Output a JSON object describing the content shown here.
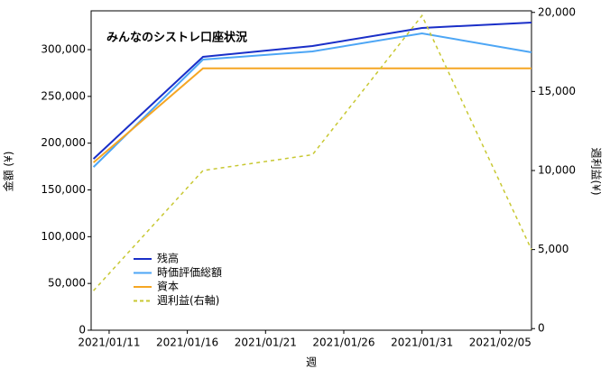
{
  "chart_data": {
    "type": "line",
    "title": "みんなのシストレ口座状況",
    "x_label": "週",
    "y_label": "金額 (¥)",
    "y2_label": "週利益(¥)",
    "x": [
      "2021/01/10",
      "2021/01/17",
      "2021/01/24",
      "2021/01/31",
      "2021/02/07"
    ],
    "xlim": [
      "2021/01/10",
      "2021/02/07"
    ],
    "xticks": [
      "2021/01/11",
      "2021/01/16",
      "2021/01/21",
      "2021/01/26",
      "2021/01/31",
      "2021/02/05"
    ],
    "ylim": [
      0,
      341500
    ],
    "yticks": [
      0,
      {
        "value": 50000,
        "label": "50,000"
      },
      {
        "value": 100000,
        "label": "100,000"
      },
      {
        "value": 150000,
        "label": "150,000"
      },
      {
        "value": 200000,
        "label": "200,000"
      },
      {
        "value": 250000,
        "label": "250,000"
      },
      {
        "value": 300000,
        "label": "300,000"
      }
    ],
    "y2lim": [
      -100,
      20100
    ],
    "y2ticks": [
      0,
      {
        "value": 5000,
        "label": "5,000"
      },
      {
        "value": 10000,
        "label": "10,000"
      },
      {
        "value": 15000,
        "label": "15,000"
      },
      {
        "value": 20000,
        "label": "20,000"
      }
    ],
    "legend": "lower left",
    "series": [
      {
        "name": "残高",
        "color": "#1a2fc8",
        "values": [
          183200,
          292300,
          303900,
          323200,
          329000
        ]
      },
      {
        "name": "時価評価総額",
        "color": "#4da6f5",
        "values": [
          174500,
          289400,
          298100,
          317400,
          297100
        ]
      },
      {
        "name": "資本",
        "color": "#f5a623",
        "values": [
          179300,
          280000,
          280000,
          280000,
          280000
        ]
      },
      {
        "name": "週利益(右軸)",
        "color": "#c8c832",
        "dashed": true,
        "axis": "y2",
        "values": [
          2400,
          10000,
          11000,
          19800,
          5000
        ]
      }
    ]
  }
}
